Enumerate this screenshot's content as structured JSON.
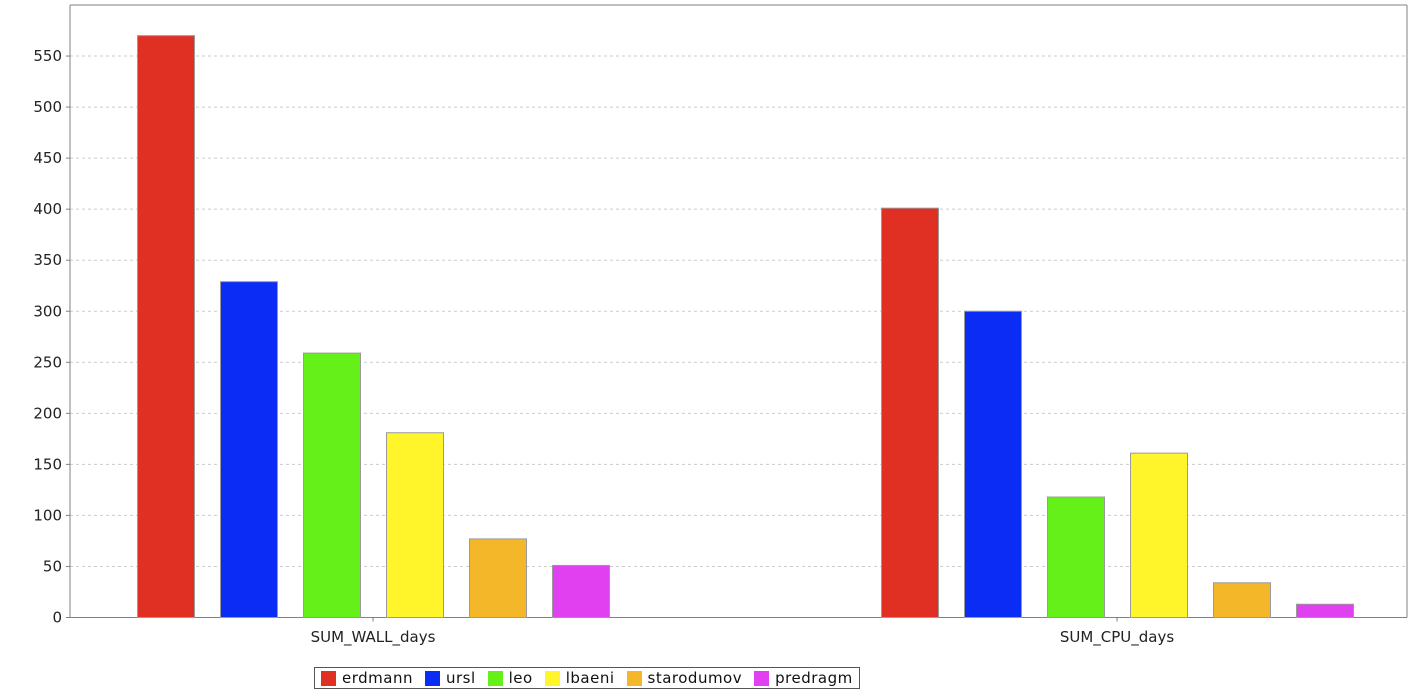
{
  "chart_data": {
    "type": "bar",
    "categories": [
      "SUM_WALL_days",
      "SUM_CPU_days"
    ],
    "series": [
      {
        "name": "erdmann",
        "color": "#e03024",
        "values": [
          570,
          401
        ]
      },
      {
        "name": "ursl",
        "color": "#0a2cf5",
        "values": [
          329,
          300
        ]
      },
      {
        "name": "leo",
        "color": "#66f01a",
        "values": [
          259,
          118
        ]
      },
      {
        "name": "lbaeni",
        "color": "#fff52a",
        "values": [
          181,
          161
        ]
      },
      {
        "name": "starodumov",
        "color": "#f5b72a",
        "values": [
          77,
          34
        ]
      },
      {
        "name": "predragm",
        "color": "#e040f0",
        "values": [
          51,
          13
        ]
      }
    ],
    "y_ticks": [
      "0",
      "50",
      "100",
      "150",
      "200",
      "250",
      "300",
      "350",
      "400",
      "450",
      "500",
      "550"
    ],
    "ylim": [
      0,
      600
    ],
    "grid": true,
    "legend_position": "bottom"
  }
}
